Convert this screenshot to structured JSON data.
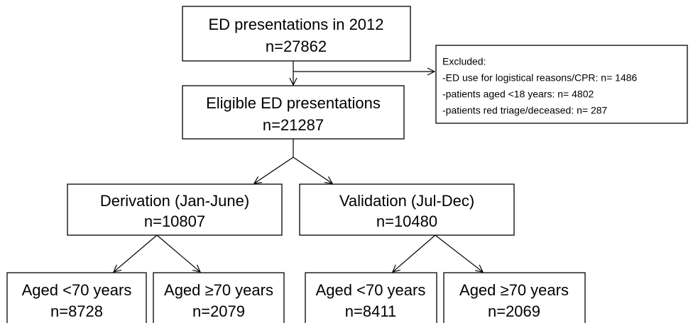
{
  "nodes": [
    {
      "label": "ED presentations in 2012",
      "count": "n=27862"
    },
    {
      "label": "Eligible ED presentations",
      "count": "n=21287"
    },
    {
      "label": "Derivation (Jan-June)",
      "count": "n=10807"
    },
    {
      "label": "Validation (Jul-Dec)",
      "count": "n=10480"
    },
    {
      "label": "Aged <70 years",
      "count": "n=8728"
    },
    {
      "label": "Aged ≥70 years",
      "count": "n=2079"
    },
    {
      "label": "Aged <70 years",
      "count": "n=8411"
    },
    {
      "label": "Aged ≥70 years",
      "count": "n=2069"
    }
  ],
  "excluded": {
    "title": "Excluded:",
    "items": [
      "-ED use for logistical reasons/CPR: n= 1486",
      "-patients aged <18 years: n= 4802",
      "-patients red triage/deceased: n= 287"
    ]
  }
}
